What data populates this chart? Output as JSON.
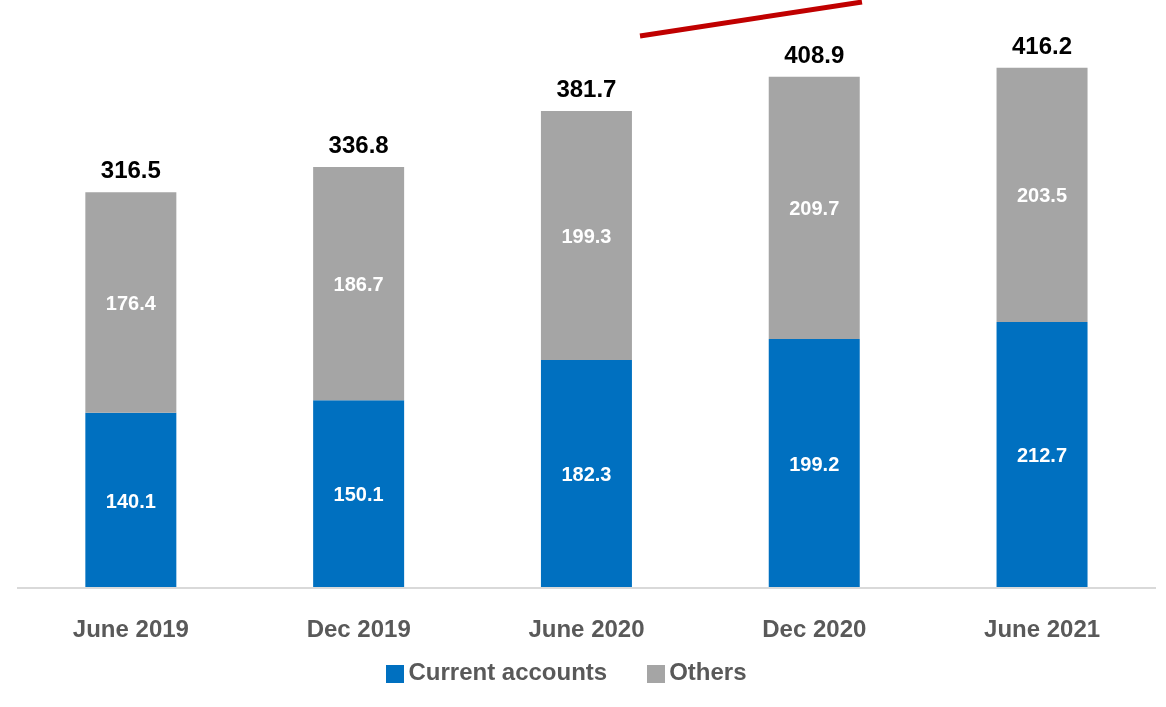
{
  "chart_data": {
    "type": "bar",
    "stacked": true,
    "categories": [
      "June 2019",
      "Dec 2019",
      "June 2020",
      "Dec 2020",
      "June 2021"
    ],
    "series": [
      {
        "name": "Current accounts",
        "color": "#0070c0",
        "values": [
          140.1,
          150.1,
          182.3,
          199.2,
          212.7
        ]
      },
      {
        "name": "Others",
        "color": "#a5a5a5",
        "values": [
          176.4,
          186.7,
          199.3,
          209.7,
          203.5
        ]
      }
    ],
    "data_labels": true,
    "totals": [
      "316.5",
      "336.8",
      "381.7",
      "408.9",
      "416.2"
    ],
    "legend": "bottom",
    "grid": false
  }
}
